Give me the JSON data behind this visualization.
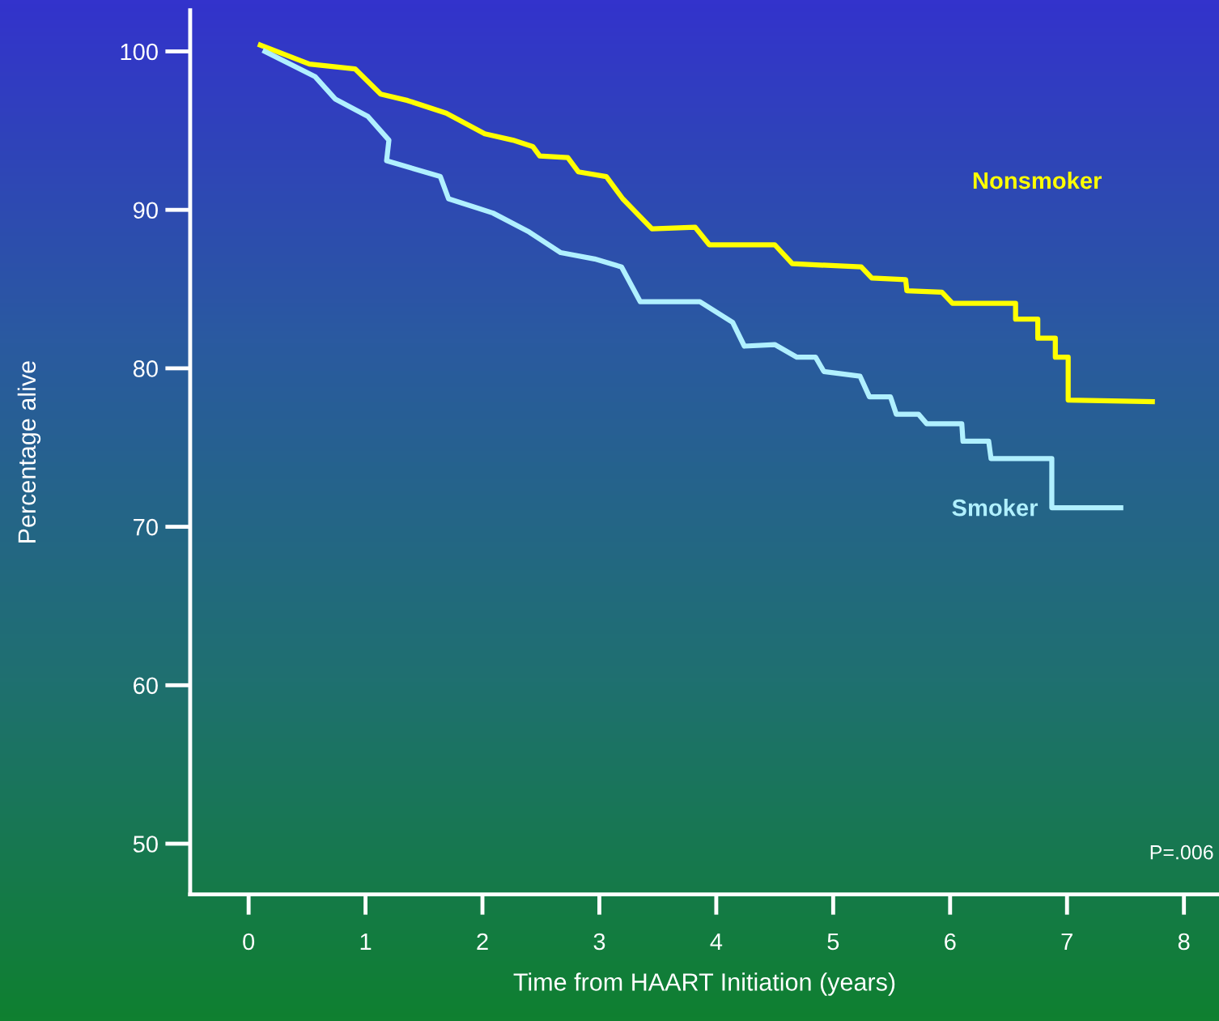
{
  "chart_data": {
    "type": "line",
    "xlabel": "Time from HAART Initiation (years)",
    "ylabel": "Percentage alive",
    "xlim": [
      -0.5,
      8.3
    ],
    "xticks": [
      0,
      1,
      2,
      3,
      4,
      5,
      6,
      7,
      8
    ],
    "ylim": [
      46.8,
      102.6
    ],
    "yticks": [
      50,
      60,
      70,
      80,
      90,
      100
    ],
    "grid": false,
    "legend": false,
    "marker": "none",
    "line_style": "solid",
    "annotations": [
      "P=.006"
    ],
    "series": [
      {
        "name": "Nonsmoker",
        "color": "#ffff00",
        "x": [
          0.1,
          0.52,
          0.91,
          1.13,
          1.36,
          1.69,
          2.02,
          2.26,
          2.43,
          2.49,
          2.73,
          2.82,
          3.06,
          3.2,
          3.45,
          3.82,
          3.94,
          4.5,
          4.65,
          5.24,
          5.33,
          5.62,
          5.63,
          5.93,
          6.02,
          6.56,
          6.56,
          6.75,
          6.75,
          6.9,
          6.9,
          7.01,
          7.01,
          7.73
        ],
        "values": [
          100.4,
          99.2,
          98.9,
          97.3,
          96.9,
          96.1,
          94.8,
          94.4,
          94.0,
          93.4,
          93.3,
          92.4,
          92.1,
          90.7,
          88.8,
          88.9,
          87.8,
          87.8,
          86.6,
          86.4,
          85.7,
          85.6,
          84.9,
          84.8,
          84.1,
          84.1,
          83.1,
          83.1,
          81.9,
          81.9,
          80.7,
          80.7,
          78.0,
          77.9
        ]
      },
      {
        "name": "Smoker",
        "color": "#b0f0ff",
        "x": [
          0.14,
          0.57,
          0.74,
          1.02,
          1.2,
          1.18,
          1.64,
          1.71,
          2.09,
          2.4,
          2.67,
          2.96,
          3.19,
          3.35,
          3.86,
          4.14,
          4.24,
          4.5,
          4.69,
          4.85,
          4.92,
          5.23,
          5.31,
          5.49,
          5.54,
          5.73,
          5.8,
          6.1,
          6.11,
          6.33,
          6.35,
          6.87,
          6.87,
          7.46
        ],
        "values": [
          100.0,
          98.4,
          97.0,
          95.9,
          94.4,
          93.1,
          92.1,
          90.7,
          89.8,
          88.6,
          87.3,
          86.9,
          86.4,
          84.2,
          84.2,
          82.9,
          81.4,
          81.5,
          80.7,
          80.7,
          79.8,
          79.5,
          78.2,
          78.2,
          77.1,
          77.1,
          76.5,
          76.5,
          75.4,
          75.4,
          74.3,
          74.3,
          71.2,
          71.2
        ]
      }
    ]
  }
}
